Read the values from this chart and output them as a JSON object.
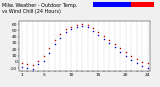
{
  "title": "Milw. Weather - Outdoor Temp.\nvs Wind Chill (24 Hours)",
  "background_color": "#f0f0f0",
  "plot_bg_color": "#ffffff",
  "grid_color": "#bbbbbb",
  "red_color": "#cc0000",
  "blue_color": "#0000dd",
  "legend_bar_blue": "#0000ff",
  "legend_bar_red": "#ff0000",
  "x_hours": [
    1,
    2,
    3,
    4,
    5,
    6,
    7,
    8,
    9,
    10,
    11,
    12,
    13,
    14,
    15,
    16,
    17,
    18,
    19,
    20,
    21,
    22,
    23,
    24
  ],
  "temp_red": [
    -2,
    -4,
    -5,
    2,
    10,
    22,
    35,
    44,
    52,
    56,
    59,
    60,
    58,
    53,
    47,
    41,
    35,
    29,
    22,
    16,
    10,
    5,
    0,
    -2
  ],
  "windchill_blue": [
    -8,
    -10,
    -12,
    -4,
    2,
    14,
    28,
    38,
    47,
    52,
    55,
    57,
    55,
    49,
    43,
    37,
    30,
    23,
    16,
    9,
    3,
    -2,
    -7,
    -10
  ],
  "ylim": [
    -15,
    65
  ],
  "xlim": [
    0.5,
    24.5
  ],
  "tick_label_fontsize": 3.2,
  "title_fontsize": 3.5,
  "marker_size": 1.2,
  "ylabel_values": [
    -10,
    0,
    10,
    20,
    30,
    40,
    50,
    60
  ],
  "x_ticks": [
    1,
    2,
    3,
    4,
    5,
    6,
    7,
    8,
    9,
    10,
    11,
    12,
    13,
    14,
    15,
    16,
    17,
    18,
    19,
    20,
    21,
    22,
    23,
    24
  ],
  "x_tick_labels": [
    "1",
    "",
    "",
    "",
    "5",
    "",
    "",
    "",
    "",
    "10",
    "",
    "",
    "",
    "",
    "15",
    "",
    "",
    "",
    "",
    "20",
    "",
    "",
    "",
    "24"
  ]
}
